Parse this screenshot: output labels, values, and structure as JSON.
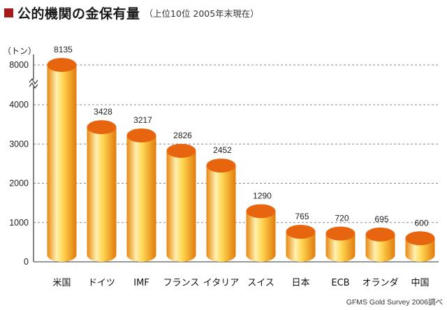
{
  "title": {
    "main": "公的機関の金保有量",
    "sub": "（上位10位 2005年末現在）"
  },
  "source": "GFMS Gold Survey 2006調べ",
  "chart_data": {
    "type": "bar",
    "title": "公的機関の金保有量",
    "subtitle": "（上位10位 2005年末現在）",
    "ylabel": "（トン）",
    "xlabel": "",
    "categories": [
      "米国",
      "ドイツ",
      "IMF",
      "フランス",
      "イタリア",
      "スイス",
      "日本",
      "ECB",
      "オランダ",
      "中国"
    ],
    "values": [
      8135,
      3428,
      3217,
      2826,
      2452,
      1290,
      765,
      720,
      695,
      600
    ],
    "ylim": [
      0,
      8000
    ],
    "yticks": [
      0,
      1000,
      2000,
      3000,
      4000,
      8000
    ],
    "axis_break": "between 4000 and 8000",
    "grid": true,
    "colors": {
      "bar_body": "#f5a623",
      "bar_highlight": "#fff1b0",
      "bar_top": "#e8650f",
      "title_mark": "#a81a1a"
    }
  }
}
